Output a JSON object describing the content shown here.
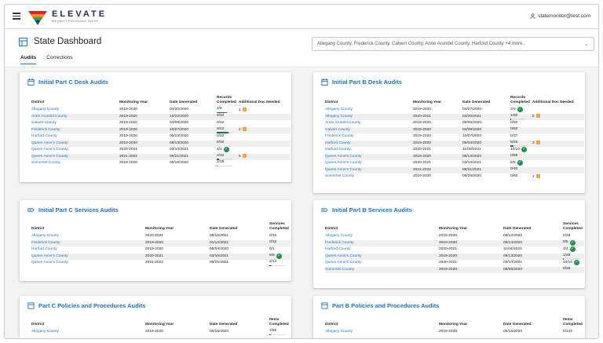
{
  "header": {
    "brand": "ELEVATE",
    "tagline": "Maryland's Performance System",
    "user": "statemonitor@test.com"
  },
  "page": {
    "title": "State Dashboard",
    "tabs": [
      "Audits",
      "Corrections"
    ],
    "filter_text": "Allegany County, Frederick County, Calvert County, Anne Arundel County, Harford County  +4 more.."
  },
  "colors": {
    "accent": "#1a73c8",
    "complete": "#1f8f4e",
    "progress": "#1b6d43",
    "warning": "#f0a030"
  },
  "cards": {
    "c_desk": {
      "title": "Initial Part C Desk Audits",
      "icon": "calendar-icon",
      "headers": {
        "district": "District",
        "year": "Monitoring Year",
        "date": "Date Generated",
        "records": "Records Completed",
        "docs": "Additional Doc Needed"
      },
      "rows": [
        {
          "district": "Allegany County",
          "year": "2019-2020",
          "date": "04/20/2020",
          "records": "4/6",
          "progress": 0.67,
          "docs": "1",
          "complete": false
        },
        {
          "district": "Anne Arundel County",
          "year": "2019-2020",
          "date": "10/22/2020",
          "records": "0/34",
          "progress": 0,
          "docs": "",
          "complete": false
        },
        {
          "district": "Calvert County",
          "year": "2019-2020",
          "date": "04/09/2020",
          "records": "0/32",
          "progress": 0,
          "docs": "",
          "complete": false
        },
        {
          "district": "Frederick County",
          "year": "2019-2020",
          "date": "10/07/2020",
          "records": "9/12",
          "progress": 0.75,
          "docs": "2",
          "complete": false
        },
        {
          "district": "Harford County",
          "year": "2019-2020",
          "date": "05/13/2020",
          "records": "0/32",
          "progress": 0,
          "docs": "",
          "complete": false
        },
        {
          "district": "Queen Anne's County",
          "year": "2019-2020",
          "date": "08/13/2020",
          "records": "0/32",
          "progress": 0,
          "docs": "",
          "complete": false
        },
        {
          "district": "Queen Anne's County",
          "year": "2020-2021",
          "date": "03/10/2021",
          "records": "4/4",
          "progress": 1,
          "docs": "",
          "complete": true
        },
        {
          "district": "Queen Anne's County",
          "year": "2021-2022",
          "date": "09/21/2021",
          "records": "2/12",
          "progress": 0.17,
          "docs": "6",
          "complete": false
        },
        {
          "district": "Somerset County",
          "year": "2019-2020",
          "date": "06/16/2020",
          "records": "1/28",
          "progress": 0.04,
          "docs": "",
          "complete": false
        }
      ]
    },
    "b_desk": {
      "title": "Initial Part B Desk Audits",
      "icon": "calendar-icon",
      "headers": {
        "district": "District",
        "year": "Monitoring Year",
        "date": "Date Generated",
        "records": "Records Completed",
        "docs": "Additional Doc Needed"
      },
      "rows": [
        {
          "district": "Allegany County",
          "year": "2019-2020",
          "date": "04/27/2020",
          "records": "3/3",
          "progress": 1,
          "docs": "",
          "complete": true
        },
        {
          "district": "Allegany County",
          "year": "2020-2021",
          "date": "04/20/2021",
          "records": "1/60",
          "progress": 0.02,
          "docs": "5",
          "complete": false
        },
        {
          "district": "Anne Arundel County",
          "year": "2019-2020",
          "date": "08/05/2020",
          "records": "0/60",
          "progress": 0,
          "docs": "",
          "complete": false
        },
        {
          "district": "Calvert County",
          "year": "2019-2020",
          "date": "04/09/2020",
          "records": "0/60",
          "progress": 0,
          "docs": "",
          "complete": false
        },
        {
          "district": "Frederick County",
          "year": "2019-2020",
          "date": "10/07/2020",
          "records": "0/37",
          "progress": 0,
          "docs": "",
          "complete": false
        },
        {
          "district": "Harford County",
          "year": "2019-2020",
          "date": "05/04/2020",
          "records": "5/25",
          "progress": 0.2,
          "docs": "2",
          "complete": false
        },
        {
          "district": "Harford County",
          "year": "2020-2021",
          "date": "11/08/2021",
          "records": "10/10",
          "progress": 1,
          "docs": "",
          "complete": true
        },
        {
          "district": "Queen Anne's County",
          "year": "2019-2020",
          "date": "08/13/2020",
          "records": "0/60",
          "progress": 0,
          "docs": "",
          "complete": false
        },
        {
          "district": "Queen Anne's County",
          "year": "2020-2021",
          "date": "03/10/2021",
          "records": "5/5",
          "progress": 1,
          "docs": "",
          "complete": true
        },
        {
          "district": "Queen Anne's County",
          "year": "2021-2022",
          "date": "09/21/2021",
          "records": "0/40",
          "progress": 0,
          "docs": "",
          "complete": false
        },
        {
          "district": "Somerset County",
          "year": "2019-2020",
          "date": "06/25/2020",
          "records": "0/60",
          "progress": 0,
          "docs": "1",
          "complete": false
        }
      ]
    },
    "c_services": {
      "title": "Initial Part C Services Audits",
      "icon": "services-icon",
      "headers": {
        "district": "District",
        "year": "Monitoring Year",
        "date": "Date Generated",
        "records": "Services Completed"
      },
      "rows": [
        {
          "district": "Allegany County",
          "year": "2020-2021",
          "date": "09/15/2021",
          "records": "0/12",
          "progress": 0,
          "complete": false
        },
        {
          "district": "Frederick County",
          "year": "2019-2020",
          "date": "01/12/2021",
          "records": "0/12",
          "progress": 0,
          "complete": false
        },
        {
          "district": "Harford County",
          "year": "2019-2020",
          "date": "06/04/2020",
          "records": "0/1",
          "progress": 0,
          "complete": false
        },
        {
          "district": "Queen Anne's County",
          "year": "2020-2021",
          "date": "03/10/2021",
          "records": "6/6",
          "progress": 1,
          "complete": true
        },
        {
          "district": "Queen Anne's County",
          "year": "2021-2022",
          "date": "09/21/2021",
          "records": "2/12",
          "progress": 0.17,
          "complete": false
        }
      ]
    },
    "b_services": {
      "title": "Initial Part B Services Audits",
      "icon": "services-icon",
      "headers": {
        "district": "District",
        "year": "Monitoring Year",
        "date": "Date Generated",
        "records": "Services Completed"
      },
      "rows": [
        {
          "district": "Allegany County",
          "year": "2019-2020",
          "date": "08/12/2020",
          "records": "0/28",
          "progress": 0,
          "complete": false
        },
        {
          "district": "Frederick County",
          "year": "2019-2020",
          "date": "09/14/2020",
          "records": "5/5",
          "progress": 1,
          "complete": true
        },
        {
          "district": "Harford County",
          "year": "2020-2021",
          "date": "11/04/2020",
          "records": "4/4",
          "progress": 1,
          "complete": true
        },
        {
          "district": "Queen Anne's County",
          "year": "2019-2020",
          "date": "08/13/2020",
          "records": "1/28",
          "progress": 0.04,
          "complete": false
        },
        {
          "district": "Queen Anne's County",
          "year": "2020-2021",
          "date": "03/10/2021",
          "records": "10/10",
          "progress": 1,
          "complete": true
        },
        {
          "district": "Somerset County",
          "year": "2019-2020",
          "date": "08/05/2020",
          "records": "0/25",
          "progress": 0,
          "complete": false
        }
      ]
    },
    "c_policies": {
      "title": "Part C Policies and Procedures Audits",
      "icon": "document-icon",
      "headers": {
        "district": "District",
        "year": "Monitoring Year",
        "date": "Date Generated",
        "records": "Items Completed"
      },
      "rows": [
        {
          "district": "Allegany County",
          "year": "2019-2020",
          "date": "06/15/2020",
          "records": "7/60",
          "progress": 0.12,
          "complete": false
        }
      ]
    },
    "b_policies": {
      "title": "Part B Policies and Procedures Audits",
      "icon": "document-icon",
      "headers": {
        "district": "District",
        "year": "Monitoring Year",
        "date": "Date Generated",
        "records": "Items Completed"
      },
      "rows": [
        {
          "district": "Allegany County",
          "year": "2019-2020",
          "date": "06/15/2020",
          "records": "0/142",
          "progress": 0,
          "complete": false
        }
      ]
    }
  }
}
